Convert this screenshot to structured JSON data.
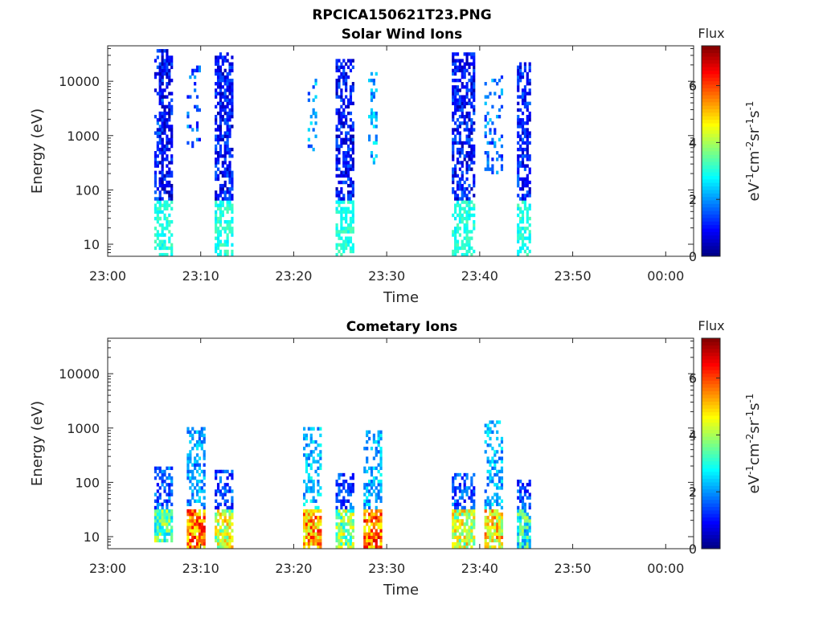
{
  "figure_title": "RPCICA150621T23.PNG",
  "colors": {
    "axis": "#262626",
    "background": "#ffffff"
  },
  "chart_data": [
    {
      "type": "heatmap",
      "title": "Solar Wind Ions",
      "xlabel": "Time",
      "ylabel": "Energy (eV)",
      "x_ticks": [
        "23:00",
        "23:10",
        "23:20",
        "23:30",
        "23:40",
        "23:50",
        "00:00"
      ],
      "x_range_minutes": [
        0,
        63
      ],
      "y_scale": "log",
      "y_range": [
        6,
        45000
      ],
      "y_ticks": [
        10,
        100,
        1000,
        10000
      ],
      "y_tick_labels": [
        "10",
        "100",
        "1000",
        "10000"
      ],
      "colorbar": {
        "title": "Flux",
        "label": "eV-1cm-2sr-1s-1",
        "range": [
          0,
          7.4
        ],
        "ticks": [
          0,
          2,
          4,
          6
        ],
        "colormap": "jet"
      },
      "bursts": [
        {
          "start_min": 5.0,
          "end_min": 6.0,
          "emin": 8,
          "emax": 40000,
          "level": 1.2,
          "density": 0.45
        },
        {
          "start_min": 5.5,
          "end_min": 7.0,
          "emin": 6,
          "emax": 40000,
          "level": 0.9,
          "density": 0.6
        },
        {
          "start_min": 8.5,
          "end_min": 10.0,
          "emin": 600,
          "emax": 20000,
          "level": 1.6,
          "density": 0.25
        },
        {
          "start_min": 11.5,
          "end_min": 13.5,
          "emin": 6,
          "emax": 35000,
          "level": 1.0,
          "density": 0.65
        },
        {
          "start_min": 21.5,
          "end_min": 22.5,
          "emin": 500,
          "emax": 12000,
          "level": 2.0,
          "density": 0.25
        },
        {
          "start_min": 24.5,
          "end_min": 26.5,
          "emin": 6,
          "emax": 25000,
          "level": 1.0,
          "density": 0.6
        },
        {
          "start_min": 28.0,
          "end_min": 29.0,
          "emin": 300,
          "emax": 15000,
          "level": 2.2,
          "density": 0.3
        },
        {
          "start_min": 37.0,
          "end_min": 39.5,
          "emin": 6,
          "emax": 35000,
          "level": 1.0,
          "density": 0.6
        },
        {
          "start_min": 40.5,
          "end_min": 42.5,
          "emin": 200,
          "emax": 12000,
          "level": 1.7,
          "density": 0.25
        },
        {
          "start_min": 44.0,
          "end_min": 45.5,
          "emin": 6,
          "emax": 22000,
          "level": 1.1,
          "density": 0.6
        }
      ]
    },
    {
      "type": "heatmap",
      "title": "Cometary Ions",
      "xlabel": "Time",
      "ylabel": "Energy (eV)",
      "x_ticks": [
        "23:00",
        "23:10",
        "23:20",
        "23:30",
        "23:40",
        "23:50",
        "00:00"
      ],
      "x_range_minutes": [
        0,
        63
      ],
      "y_scale": "log",
      "y_range": [
        6,
        45000
      ],
      "y_ticks": [
        10,
        100,
        1000,
        10000
      ],
      "y_tick_labels": [
        "10",
        "100",
        "1000",
        "10000"
      ],
      "colorbar": {
        "title": "Flux",
        "label": "eV-1cm-2sr-1s-1",
        "range": [
          0,
          7.4
        ],
        "ticks": [
          0,
          2,
          4,
          6
        ],
        "colormap": "jet"
      },
      "bursts": [
        {
          "start_min": 5.0,
          "end_min": 7.0,
          "emin": 8,
          "emax": 200,
          "level": 1.6,
          "density": 0.55,
          "low_level": 3.5
        },
        {
          "start_min": 8.5,
          "end_min": 10.5,
          "emin": 6,
          "emax": 1000,
          "level": 2.0,
          "density": 0.5,
          "low_level": 5.5
        },
        {
          "start_min": 11.5,
          "end_min": 13.5,
          "emin": 6,
          "emax": 160,
          "level": 1.4,
          "density": 0.55,
          "low_level": 4.2
        },
        {
          "start_min": 21.0,
          "end_min": 23.0,
          "emin": 6,
          "emax": 1000,
          "level": 2.3,
          "density": 0.4,
          "low_level": 5.3
        },
        {
          "start_min": 24.5,
          "end_min": 26.5,
          "emin": 6,
          "emax": 140,
          "level": 1.4,
          "density": 0.55,
          "low_level": 3.8
        },
        {
          "start_min": 27.5,
          "end_min": 29.5,
          "emin": 6,
          "emax": 900,
          "level": 2.2,
          "density": 0.45,
          "low_level": 5.6
        },
        {
          "start_min": 37.0,
          "end_min": 39.5,
          "emin": 6,
          "emax": 150,
          "level": 1.5,
          "density": 0.55,
          "low_level": 4.2
        },
        {
          "start_min": 40.5,
          "end_min": 42.5,
          "emin": 6,
          "emax": 1300,
          "level": 2.2,
          "density": 0.4,
          "low_level": 4.8
        },
        {
          "start_min": 44.0,
          "end_min": 45.5,
          "emin": 6,
          "emax": 120,
          "level": 1.4,
          "density": 0.55,
          "low_level": 3.0
        }
      ]
    }
  ]
}
